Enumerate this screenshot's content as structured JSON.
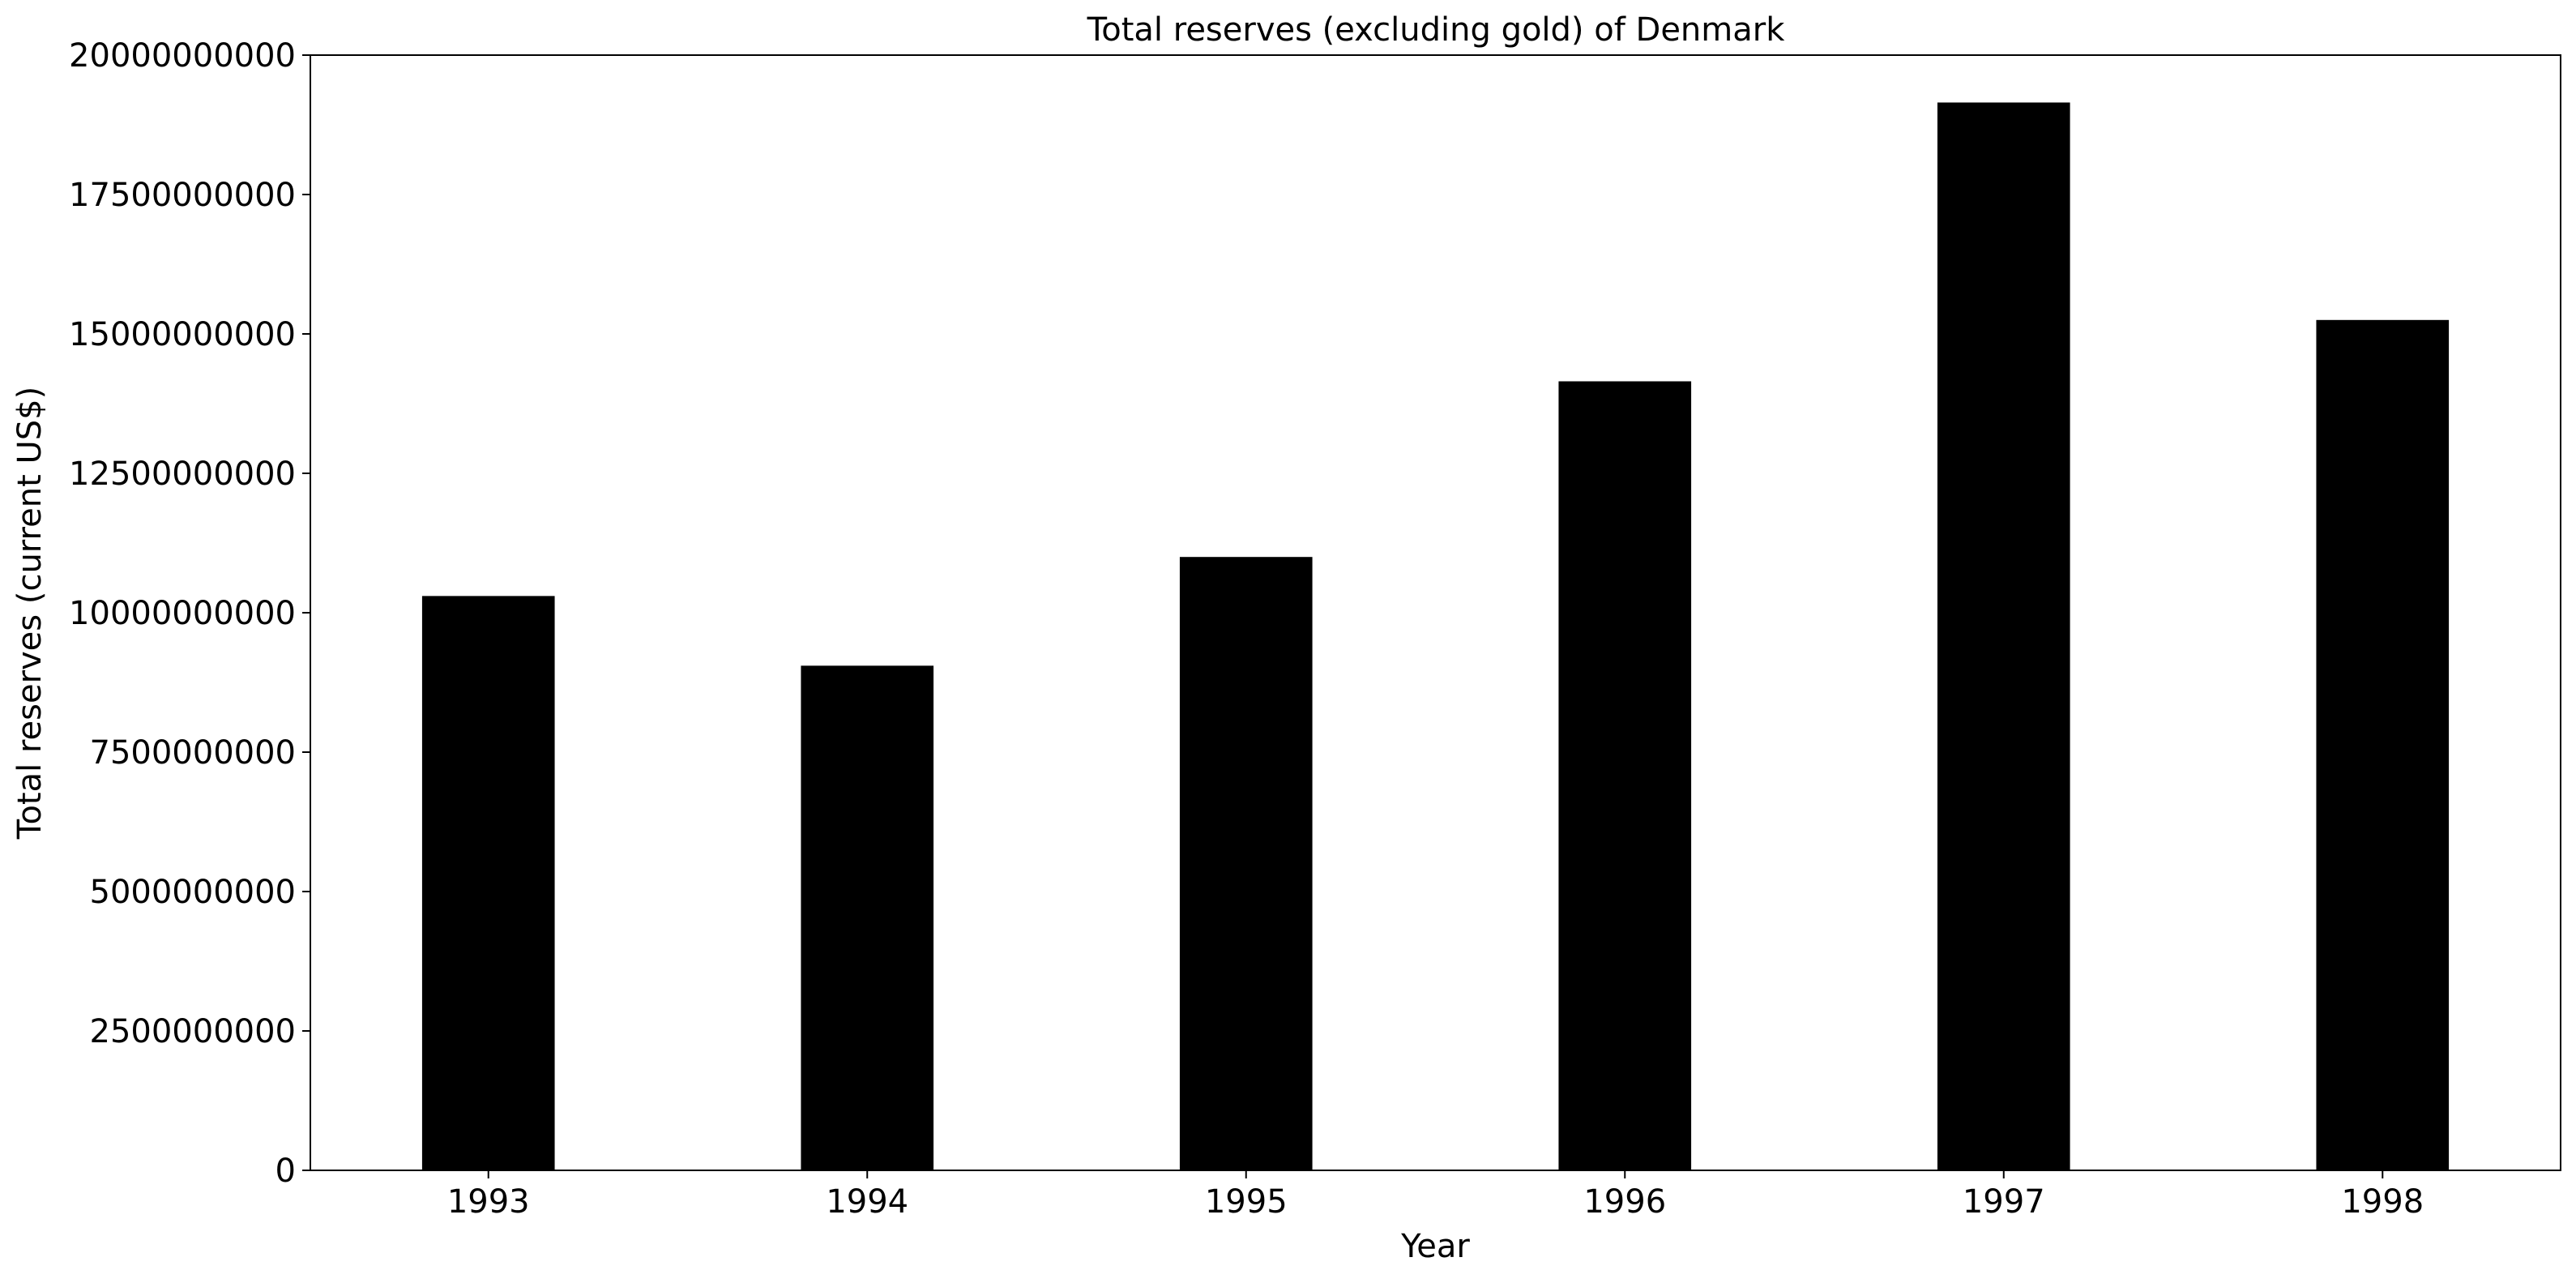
{
  "chart_data": {
    "type": "bar",
    "title": "Total reserves (excluding gold) of Denmark",
    "xlabel": "Year",
    "ylabel": "Total reserves (current US$)",
    "categories": [
      "1993",
      "1994",
      "1995",
      "1996",
      "1997",
      "1998"
    ],
    "values": [
      10300000000,
      9050000000,
      11000000000,
      14150000000,
      19150000000,
      15250000000
    ],
    "ylim": [
      0,
      20000000000
    ],
    "yticks": [
      0,
      2500000000,
      5000000000,
      7500000000,
      10000000000,
      12500000000,
      15000000000,
      17500000000,
      20000000000
    ],
    "ytick_labels": [
      "0",
      "2500000000",
      "5000000000",
      "7500000000",
      "10000000000",
      "12500000000",
      "15000000000",
      "17500000000",
      "20000000000"
    ],
    "grid": false,
    "bar_color": "#000000"
  }
}
